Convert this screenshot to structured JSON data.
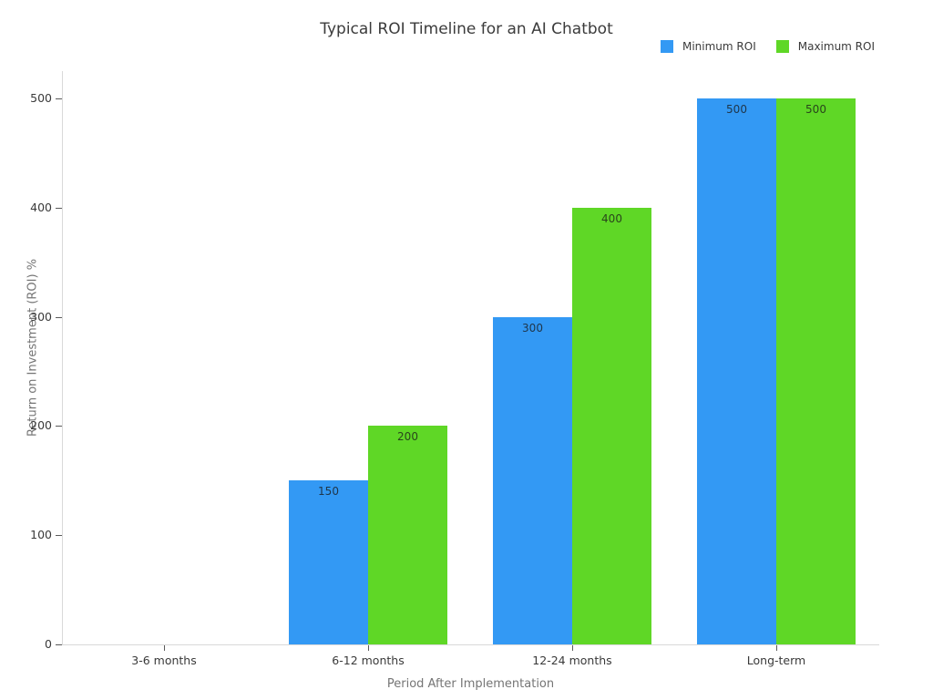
{
  "chart_data": {
    "type": "bar",
    "title": "Typical ROI Timeline for an AI Chatbot",
    "xlabel": "Period After Implementation",
    "ylabel": "Return on Investment (ROI) %",
    "categories": [
      "3-6 months",
      "6-12 months",
      "12-24 months",
      "Long-term"
    ],
    "series": [
      {
        "name": "Minimum ROI",
        "color": "#3399F4",
        "values": [
          0,
          150,
          300,
          500
        ]
      },
      {
        "name": "Maximum ROI",
        "color": "#5FD726",
        "values": [
          0,
          200,
          400,
          500
        ]
      }
    ],
    "ylim": [
      0,
      500
    ],
    "yticks": [
      0,
      100,
      200,
      300,
      400,
      500
    ],
    "grid": false,
    "legend_position": "top-right",
    "bar_value_labels": true,
    "background": "#ffffff"
  }
}
